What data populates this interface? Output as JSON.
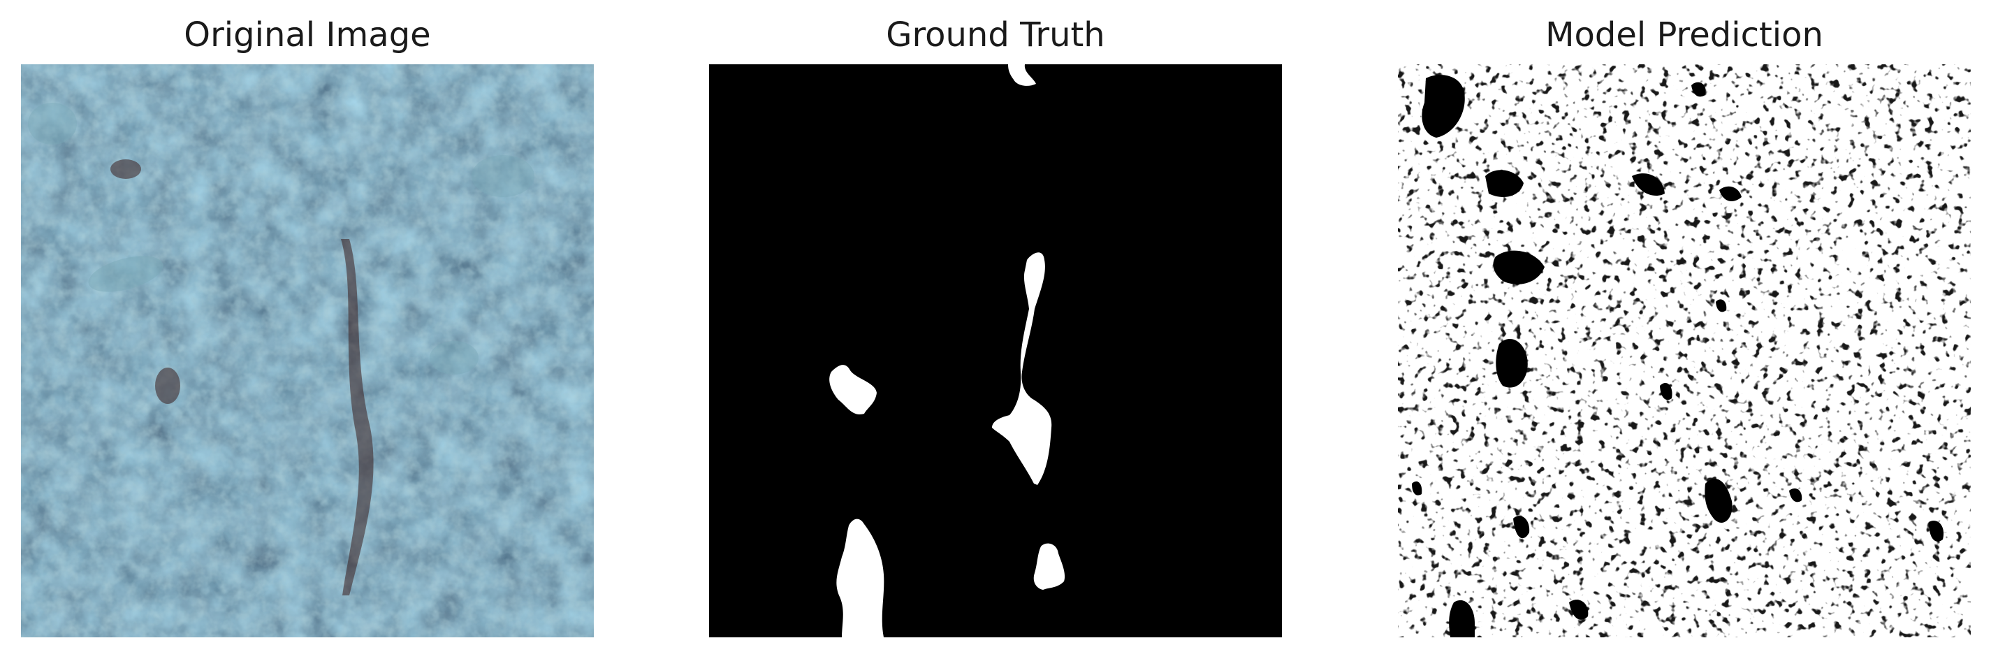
{
  "figure": {
    "panels": [
      {
        "title": "Original Image",
        "kind": "micrograph",
        "colors": {
          "base": "#233f55",
          "light": "#6f9fad",
          "dark": "#0e1e2c",
          "stain": "#3a1f1f"
        }
      },
      {
        "title": "Ground Truth",
        "kind": "binary-mask",
        "colors": {
          "background": "#000000",
          "foreground": "#ffffff"
        }
      },
      {
        "title": "Model Prediction",
        "kind": "binary-mask",
        "colors": {
          "background": "#ffffff",
          "foreground": "#000000"
        }
      }
    ]
  }
}
